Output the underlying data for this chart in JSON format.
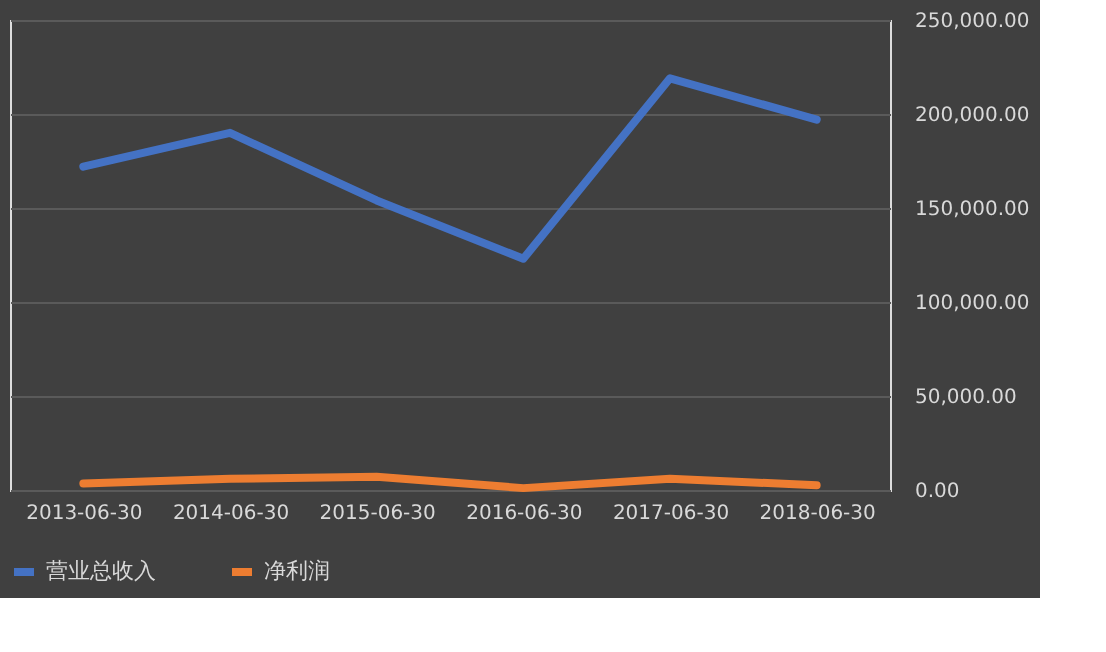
{
  "chart_data": {
    "type": "line",
    "categories": [
      "2013-06-30",
      "2014-06-30",
      "2015-06-30",
      "2016-06-30",
      "2017-06-30",
      "2018-06-30"
    ],
    "series": [
      {
        "name": "营业总收入",
        "color": "#4472c4",
        "values": [
          172000,
          190000,
          154000,
          123000,
          219000,
          197000
        ]
      },
      {
        "name": "净利润",
        "color": "#ed7d31",
        "values": [
          3500,
          6000,
          7000,
          1000,
          6000,
          2500
        ]
      }
    ],
    "ylim": [
      0,
      250000
    ],
    "yticks": [
      {
        "value": 0,
        "label": "0.00"
      },
      {
        "value": 50000,
        "label": "50,000.00"
      },
      {
        "value": 100000,
        "label": "100,000.00"
      },
      {
        "value": 150000,
        "label": "150,000.00"
      },
      {
        "value": 200000,
        "label": "200,000.00"
      },
      {
        "value": 250000,
        "label": "250,000.00"
      }
    ],
    "grid": "y",
    "legend": "bottom",
    "marker": "none",
    "line_style": "solid"
  }
}
